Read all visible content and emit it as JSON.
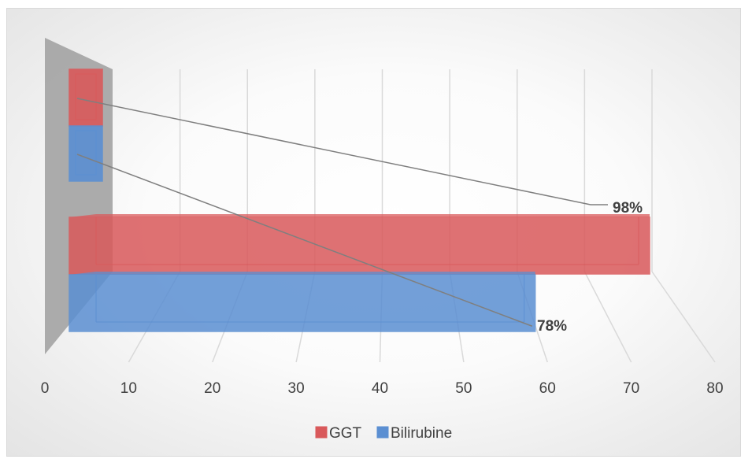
{
  "chart_data": {
    "type": "bar",
    "orientation": "horizontal",
    "style": "3d",
    "xlim": [
      0,
      80
    ],
    "x_ticks": [
      "0",
      "10",
      "20",
      "30",
      "40",
      "50",
      "60",
      "70",
      "80"
    ],
    "series": [
      {
        "name": "GGT",
        "value": 71,
        "label": "98%",
        "color": "#d9595b"
      },
      {
        "name": "Bilirubine",
        "value": 57,
        "label": "78%",
        "color": "#5b8fd2"
      }
    ],
    "grid": true,
    "legend_position": "bottom"
  }
}
